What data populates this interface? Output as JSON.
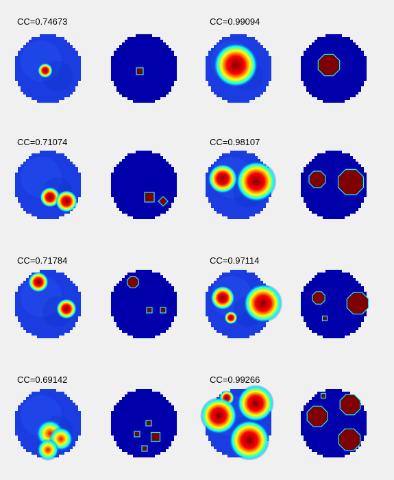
{
  "figure": {
    "background": "#f0f0f0",
    "colors": {
      "disc_base": "#0000ab",
      "disc_recon": "#1a3ce0",
      "inclusion": "#7f0000",
      "inclusion_edge": "#00ffff",
      "hot": "#ffff00",
      "mid": "#ff0000"
    },
    "rows": [
      {
        "pairs": [
          {
            "cc": "CC=0.74673"
          },
          {
            "cc": "CC=0.99094"
          }
        ]
      },
      {
        "pairs": [
          {
            "cc": "CC=0.71074"
          },
          {
            "cc": "CC=0.98107"
          }
        ]
      },
      {
        "pairs": [
          {
            "cc": "CC=0.71784"
          },
          {
            "cc": "CC=0.97114"
          }
        ]
      },
      {
        "pairs": [
          {
            "cc": "CC=0.69142"
          },
          {
            "cc": "CC=0.99266"
          }
        ]
      }
    ]
  }
}
